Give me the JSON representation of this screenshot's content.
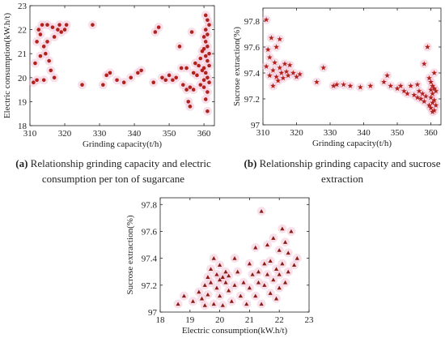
{
  "captions": {
    "a": {
      "tag": "(a)",
      "text": " Relationship grinding capacity and electric consumption per ton of sugarcane"
    },
    "b": {
      "tag": "(b)",
      "text": " Relationship grinding capacity and sucrose extraction"
    }
  },
  "chart_data": [
    {
      "type": "scatter",
      "title": "",
      "xlabel": "Grinding capacity(t/h)",
      "ylabel": "Electric consumption(kW.h/t)",
      "xlim": [
        310,
        363
      ],
      "ylim": [
        18,
        23
      ],
      "x_ticks": [
        310,
        320,
        330,
        340,
        350,
        360
      ],
      "y_ticks": [
        18,
        19,
        20,
        21,
        22,
        23
      ],
      "marker": "circle",
      "marker_color": "#b2221d",
      "halo_color": "#f2c6d8",
      "points": [
        [
          311,
          19.8
        ],
        [
          311.5,
          20.6
        ],
        [
          312,
          21.5
        ],
        [
          312,
          19.9
        ],
        [
          312.5,
          22.0
        ],
        [
          313,
          20.9
        ],
        [
          313,
          21.8
        ],
        [
          313.5,
          22.2
        ],
        [
          314,
          21.3
        ],
        [
          314,
          19.9
        ],
        [
          314.5,
          21.0
        ],
        [
          315,
          22.2
        ],
        [
          315,
          21.5
        ],
        [
          315.5,
          20.7
        ],
        [
          316,
          20.3
        ],
        [
          316.5,
          22.1
        ],
        [
          317,
          21.7
        ],
        [
          317,
          20.0
        ],
        [
          318,
          22.0
        ],
        [
          318.5,
          22.2
        ],
        [
          319,
          21.9
        ],
        [
          320,
          22.0
        ],
        [
          320.5,
          22.2
        ],
        [
          325,
          19.7
        ],
        [
          328,
          22.2
        ],
        [
          331,
          19.7
        ],
        [
          332,
          20.1
        ],
        [
          333,
          20.2
        ],
        [
          335,
          19.9
        ],
        [
          337,
          19.8
        ],
        [
          339,
          20.0
        ],
        [
          341,
          20.2
        ],
        [
          342,
          20.3
        ],
        [
          345.5,
          19.8
        ],
        [
          346,
          21.9
        ],
        [
          347,
          22.1
        ],
        [
          348,
          20.0
        ],
        [
          349,
          19.9
        ],
        [
          350,
          20.1
        ],
        [
          351,
          19.9
        ],
        [
          352,
          20.0
        ],
        [
          353,
          21.3
        ],
        [
          353.5,
          20.4
        ],
        [
          354,
          19.7
        ],
        [
          355,
          19.5
        ],
        [
          355,
          20.4
        ],
        [
          355.5,
          19.0
        ],
        [
          356,
          19.6
        ],
        [
          356,
          18.8
        ],
        [
          356.5,
          21.9
        ],
        [
          357,
          20.2
        ],
        [
          357,
          19.5
        ],
        [
          357.5,
          20.6
        ],
        [
          358,
          20.1
        ],
        [
          358.5,
          20.5
        ],
        [
          359,
          20.8
        ],
        [
          359,
          19.7
        ],
        [
          359.5,
          21.1
        ],
        [
          359.5,
          20.3
        ],
        [
          360,
          21.7
        ],
        [
          360,
          21.2
        ],
        [
          360,
          20.4
        ],
        [
          360,
          19.9
        ],
        [
          360,
          19.6
        ],
        [
          360.5,
          22.6
        ],
        [
          360.5,
          22.0
        ],
        [
          360.5,
          21.5
        ],
        [
          360.5,
          20.9
        ],
        [
          360.5,
          20.2
        ],
        [
          360.5,
          19.1
        ],
        [
          361,
          22.4
        ],
        [
          361,
          21.8
        ],
        [
          361,
          21.3
        ],
        [
          361,
          20.7
        ],
        [
          361,
          20.0
        ],
        [
          361,
          19.4
        ],
        [
          361,
          18.6
        ],
        [
          361.5,
          22.2
        ],
        [
          361.5,
          21.0
        ],
        [
          361.5,
          20.5
        ],
        [
          361.5,
          19.8
        ]
      ]
    },
    {
      "type": "scatter",
      "title": "",
      "xlabel": "Grinding capacity(t/h)",
      "ylabel": "Sucrose extraction(%)",
      "xlim": [
        310,
        363
      ],
      "ylim": [
        97,
        97.9
      ],
      "x_ticks": [
        310,
        320,
        330,
        340,
        350,
        360
      ],
      "y_ticks": [
        97,
        97.2,
        97.4,
        97.6,
        97.8
      ],
      "marker": "star",
      "marker_color": "#b2221d",
      "halo_color": "#f2c6d8",
      "points": [
        [
          311,
          97.81
        ],
        [
          311,
          97.45
        ],
        [
          311.5,
          97.58
        ],
        [
          312,
          97.38
        ],
        [
          312,
          97.52
        ],
        [
          312.5,
          97.67
        ],
        [
          313,
          97.42
        ],
        [
          313,
          97.3
        ],
        [
          313.5,
          97.48
        ],
        [
          314,
          97.37
        ],
        [
          314,
          97.6
        ],
        [
          314.5,
          97.34
        ],
        [
          315,
          97.44
        ],
        [
          315,
          97.66
        ],
        [
          315.5,
          97.4
        ],
        [
          316,
          97.36
        ],
        [
          316.5,
          97.47
        ],
        [
          317,
          97.41
        ],
        [
          317.5,
          97.38
        ],
        [
          318,
          97.46
        ],
        [
          319,
          97.4
        ],
        [
          320,
          97.37
        ],
        [
          321,
          97.39
        ],
        [
          326,
          97.33
        ],
        [
          328,
          97.44
        ],
        [
          331,
          97.3
        ],
        [
          332,
          97.31
        ],
        [
          334,
          97.31
        ],
        [
          336,
          97.3
        ],
        [
          339,
          97.29
        ],
        [
          342,
          97.3
        ],
        [
          346,
          97.33
        ],
        [
          347,
          97.38
        ],
        [
          348,
          97.3
        ],
        [
          350,
          97.28
        ],
        [
          351,
          97.3
        ],
        [
          352,
          97.26
        ],
        [
          353,
          97.24
        ],
        [
          354,
          97.3
        ],
        [
          355,
          97.23
        ],
        [
          356,
          97.21
        ],
        [
          356,
          97.31
        ],
        [
          356.5,
          97.26
        ],
        [
          357,
          97.2
        ],
        [
          357.5,
          97.24
        ],
        [
          358,
          97.18
        ],
        [
          358,
          97.47
        ],
        [
          358.5,
          97.22
        ],
        [
          359,
          97.6
        ],
        [
          359.5,
          97.36
        ],
        [
          359.5,
          97.15
        ],
        [
          360,
          97.33
        ],
        [
          360,
          97.27
        ],
        [
          360,
          97.21
        ],
        [
          360,
          97.13
        ],
        [
          360.5,
          97.3
        ],
        [
          360.5,
          97.24
        ],
        [
          360.5,
          97.17
        ],
        [
          360.5,
          97.1
        ],
        [
          361,
          97.4
        ],
        [
          361,
          97.28
        ],
        [
          361,
          97.19
        ],
        [
          361,
          97.11
        ],
        [
          361.5,
          97.26
        ],
        [
          361.5,
          97.15
        ]
      ]
    },
    {
      "type": "scatter",
      "title": "",
      "xlabel": "Electric consumption(kW.h/t)",
      "ylabel": "Sucrose extraction(%)",
      "xlim": [
        18,
        23
      ],
      "ylim": [
        97,
        97.85
      ],
      "x_ticks": [
        18,
        19,
        20,
        21,
        22,
        23
      ],
      "y_ticks": [
        97,
        97.2,
        97.4,
        97.6,
        97.8
      ],
      "marker": "triangle",
      "marker_color": "#8b1c14",
      "halo_color": "#f2c6d8",
      "points": [
        [
          18.6,
          97.06
        ],
        [
          18.8,
          97.12
        ],
        [
          19.1,
          97.08
        ],
        [
          19.3,
          97.15
        ],
        [
          19.4,
          97.1
        ],
        [
          19.5,
          97.2
        ],
        [
          19.5,
          97.05
        ],
        [
          19.6,
          97.26
        ],
        [
          19.6,
          97.13
        ],
        [
          19.7,
          97.32
        ],
        [
          19.7,
          97.22
        ],
        [
          19.8,
          97.06
        ],
        [
          19.8,
          97.4
        ],
        [
          19.9,
          97.28
        ],
        [
          19.9,
          97.18
        ],
        [
          20.0,
          97.24
        ],
        [
          20.0,
          97.12
        ],
        [
          20.0,
          97.35
        ],
        [
          20.1,
          97.26
        ],
        [
          20.1,
          97.05
        ],
        [
          20.2,
          97.22
        ],
        [
          20.2,
          97.3
        ],
        [
          20.3,
          97.16
        ],
        [
          20.3,
          97.27
        ],
        [
          20.4,
          97.08
        ],
        [
          20.5,
          97.4
        ],
        [
          20.5,
          97.2
        ],
        [
          20.6,
          97.3
        ],
        [
          20.7,
          97.12
        ],
        [
          20.8,
          97.22
        ],
        [
          20.9,
          97.06
        ],
        [
          21.0,
          97.36
        ],
        [
          21.0,
          97.18
        ],
        [
          21.1,
          97.28
        ],
        [
          21.2,
          97.48
        ],
        [
          21.2,
          97.12
        ],
        [
          21.3,
          97.3
        ],
        [
          21.3,
          97.22
        ],
        [
          21.4,
          97.75
        ],
        [
          21.4,
          97.06
        ],
        [
          21.5,
          97.36
        ],
        [
          21.5,
          97.2
        ],
        [
          21.6,
          97.5
        ],
        [
          21.6,
          97.28
        ],
        [
          21.7,
          97.14
        ],
        [
          21.7,
          97.38
        ],
        [
          21.8,
          97.55
        ],
        [
          21.8,
          97.24
        ],
        [
          21.9,
          97.32
        ],
        [
          21.9,
          97.1
        ],
        [
          22.0,
          97.46
        ],
        [
          22.0,
          97.28
        ],
        [
          22.0,
          97.18
        ],
        [
          22.1,
          97.62
        ],
        [
          22.1,
          97.36
        ],
        [
          22.2,
          97.52
        ],
        [
          22.2,
          97.22
        ],
        [
          22.3,
          97.44
        ],
        [
          22.3,
          97.3
        ],
        [
          22.4,
          97.6
        ],
        [
          22.5,
          97.35
        ],
        [
          22.6,
          97.4
        ]
      ]
    }
  ]
}
